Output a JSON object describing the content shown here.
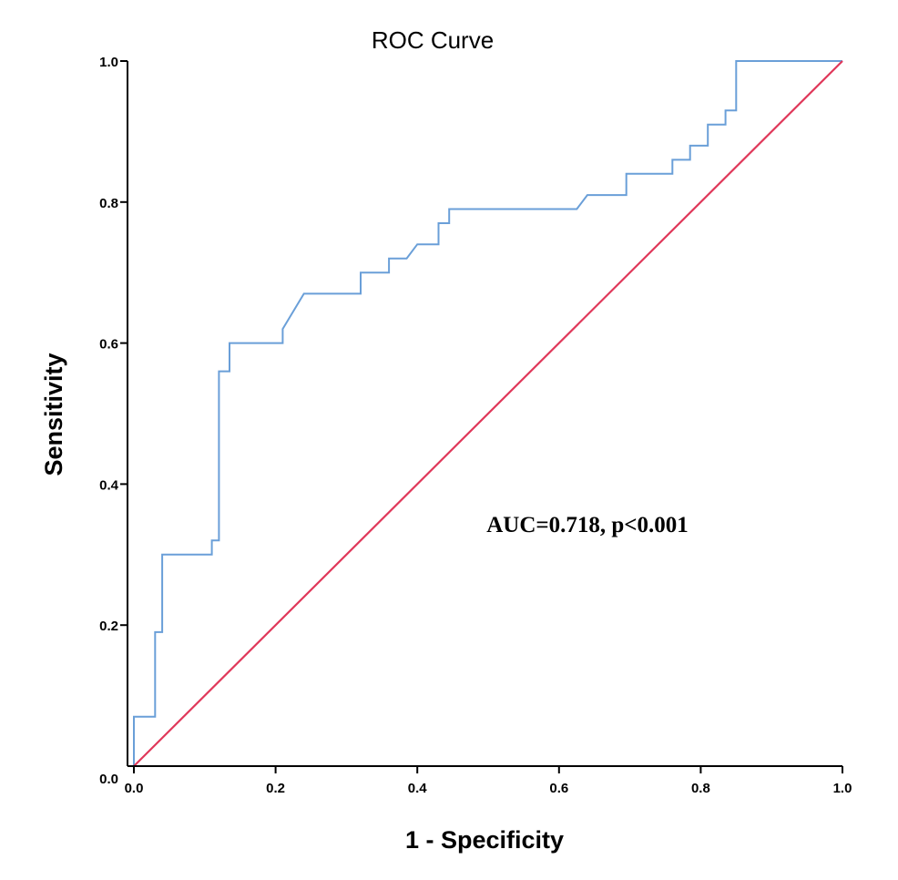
{
  "chart_data": {
    "type": "line",
    "title": "ROC Curve",
    "xlabel": "1 - Specificity",
    "ylabel": "Sensitivity",
    "xlim": [
      0.0,
      1.0
    ],
    "ylim": [
      0.0,
      1.0
    ],
    "x_ticks": [
      "0.0",
      "0.2",
      "0.4",
      "0.6",
      "0.8",
      "1.0"
    ],
    "y_ticks": [
      "0.0",
      "0.2",
      "0.4",
      "0.6",
      "0.8",
      "1.0"
    ],
    "x_tick_values": [
      0.0,
      0.2,
      0.4,
      0.6,
      0.8,
      1.0
    ],
    "y_tick_values": [
      0.0,
      0.2,
      0.4,
      0.6,
      0.8,
      1.0
    ],
    "grid": false,
    "annotation": "AUC=0.718, p<0.001",
    "series": [
      {
        "name": "ROC",
        "color": "#6a9fd8",
        "points": [
          [
            0.0,
            0.0
          ],
          [
            0.0,
            0.07
          ],
          [
            0.03,
            0.07
          ],
          [
            0.03,
            0.19
          ],
          [
            0.04,
            0.19
          ],
          [
            0.04,
            0.3
          ],
          [
            0.11,
            0.3
          ],
          [
            0.11,
            0.32
          ],
          [
            0.12,
            0.32
          ],
          [
            0.12,
            0.56
          ],
          [
            0.135,
            0.56
          ],
          [
            0.135,
            0.6
          ],
          [
            0.21,
            0.6
          ],
          [
            0.21,
            0.62
          ],
          [
            0.24,
            0.67
          ],
          [
            0.32,
            0.67
          ],
          [
            0.32,
            0.7
          ],
          [
            0.36,
            0.7
          ],
          [
            0.36,
            0.72
          ],
          [
            0.385,
            0.72
          ],
          [
            0.4,
            0.74
          ],
          [
            0.43,
            0.74
          ],
          [
            0.43,
            0.77
          ],
          [
            0.445,
            0.77
          ],
          [
            0.445,
            0.79
          ],
          [
            0.625,
            0.79
          ],
          [
            0.64,
            0.81
          ],
          [
            0.695,
            0.81
          ],
          [
            0.695,
            0.84
          ],
          [
            0.76,
            0.84
          ],
          [
            0.76,
            0.86
          ],
          [
            0.785,
            0.86
          ],
          [
            0.785,
            0.88
          ],
          [
            0.81,
            0.88
          ],
          [
            0.81,
            0.91
          ],
          [
            0.835,
            0.91
          ],
          [
            0.835,
            0.93
          ],
          [
            0.85,
            0.93
          ],
          [
            0.85,
            1.0
          ],
          [
            1.0,
            1.0
          ]
        ]
      },
      {
        "name": "Reference line",
        "color": "#e0385a",
        "points": [
          [
            0.0,
            0.0
          ],
          [
            1.0,
            1.0
          ]
        ]
      }
    ]
  }
}
